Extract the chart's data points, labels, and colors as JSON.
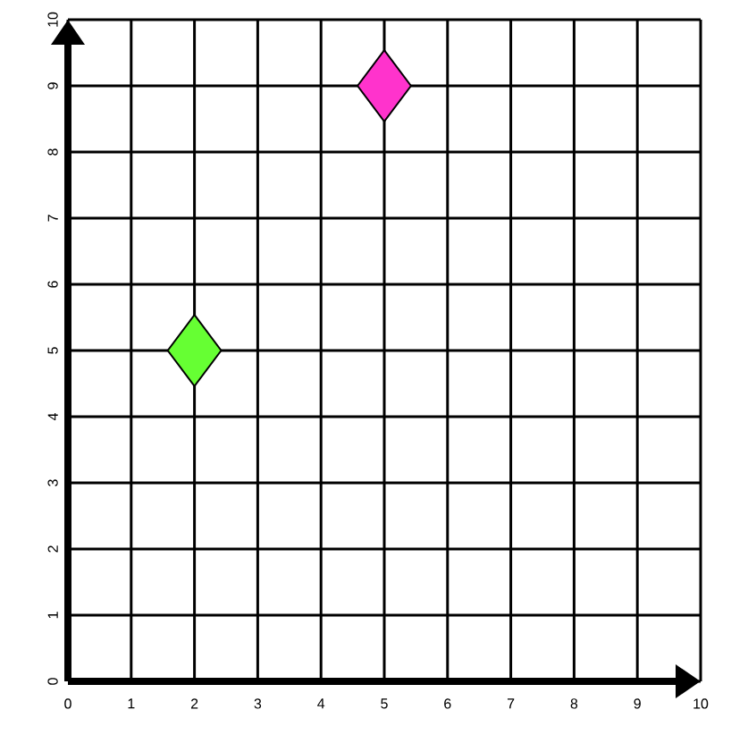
{
  "chart_data": {
    "type": "scatter",
    "x": [
      2,
      5
    ],
    "values": [
      5,
      9
    ],
    "colors": [
      "#66ff33",
      "#ff33cc"
    ],
    "marker": "diamond",
    "grid": true,
    "xlim": [
      0,
      10
    ],
    "ylim": [
      0,
      10
    ],
    "xticks": [
      0,
      1,
      2,
      3,
      4,
      5,
      6,
      7,
      8,
      9,
      10
    ],
    "yticks": [
      0,
      1,
      2,
      3,
      4,
      5,
      6,
      7,
      8,
      9,
      10
    ]
  }
}
